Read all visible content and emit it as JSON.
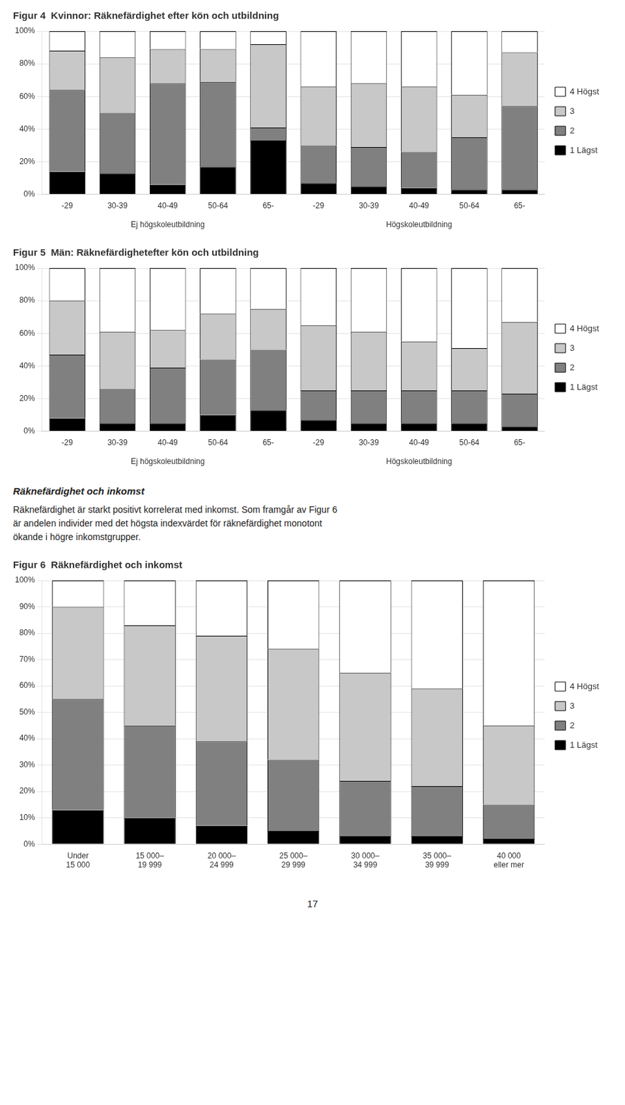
{
  "chart_data": [
    {
      "type": "bar",
      "stacked": true,
      "grid": true,
      "legend": "right",
      "title": "Figur 4  Kvinnor: Räknefärdighet efter kön och utbildning",
      "categories": [
        "-29",
        "30-39",
        "40-49",
        "50-64",
        "65-",
        "-29",
        "30-39",
        "40-49",
        "50-64",
        "65-"
      ],
      "group_labels": [
        "Ej högskoleutbildning",
        "Högskoleutbildning"
      ],
      "ylim": [
        0,
        100
      ],
      "yticks": [
        {
          "value": 0,
          "label": "0%"
        },
        {
          "value": 20,
          "label": "20%"
        },
        {
          "value": 40,
          "label": "40%"
        },
        {
          "value": 60,
          "label": "60%"
        },
        {
          "value": 80,
          "label": "80%"
        },
        {
          "value": 100,
          "label": "100%"
        }
      ],
      "series": [
        {
          "name": "1 Lägst",
          "color": "#000000",
          "values": [
            14,
            13,
            6,
            17,
            33,
            7,
            5,
            4,
            3,
            3
          ]
        },
        {
          "name": "2",
          "color": "#808080",
          "values": [
            50,
            37,
            62,
            52,
            8,
            23,
            24,
            22,
            32,
            51
          ]
        },
        {
          "name": "3",
          "color": "#c8c8c8",
          "values": [
            24,
            34,
            21,
            20,
            51,
            36,
            39,
            40,
            26,
            33
          ]
        },
        {
          "name": "4 Högst",
          "color": "#ffffff",
          "values": [
            12,
            16,
            11,
            11,
            8,
            34,
            32,
            34,
            39,
            13
          ]
        }
      ]
    },
    {
      "type": "bar",
      "stacked": true,
      "grid": true,
      "legend": "right",
      "title": "Figur 5  Män: Räknefärdighetefter kön och utbildning",
      "categories": [
        "-29",
        "30-39",
        "40-49",
        "50-64",
        "65-",
        "-29",
        "30-39",
        "40-49",
        "50-64",
        "65-"
      ],
      "group_labels": [
        "Ej högskoleutbildning",
        "Högskoleutbildning"
      ],
      "ylim": [
        0,
        100
      ],
      "yticks": [
        {
          "value": 0,
          "label": "0%"
        },
        {
          "value": 20,
          "label": "20%"
        },
        {
          "value": 40,
          "label": "40%"
        },
        {
          "value": 60,
          "label": "60%"
        },
        {
          "value": 80,
          "label": "80%"
        },
        {
          "value": 100,
          "label": "100%"
        }
      ],
      "series": [
        {
          "name": "1 Lägst",
          "color": "#000000",
          "values": [
            8,
            5,
            5,
            10,
            13,
            7,
            5,
            5,
            5,
            3
          ]
        },
        {
          "name": "2",
          "color": "#808080",
          "values": [
            39,
            21,
            34,
            34,
            37,
            18,
            20,
            20,
            20,
            20
          ]
        },
        {
          "name": "3",
          "color": "#c8c8c8",
          "values": [
            33,
            35,
            23,
            28,
            25,
            40,
            36,
            30,
            26,
            44
          ]
        },
        {
          "name": "4 Högst",
          "color": "#ffffff",
          "values": [
            20,
            39,
            38,
            28,
            25,
            35,
            39,
            45,
            49,
            33
          ]
        }
      ]
    },
    {
      "type": "bar",
      "stacked": true,
      "grid": true,
      "legend": "right",
      "title": "Figur 6  Räknefärdighet och inkomst",
      "categories": [
        "Under\n15 000",
        "15 000–\n19 999",
        "20 000–\n24 999",
        "25 000–\n29 999",
        "30 000–\n34 999",
        "35 000–\n39 999",
        "40 000\neller mer"
      ],
      "ylim": [
        0,
        100
      ],
      "yticks": [
        {
          "value": 0,
          "label": "0%"
        },
        {
          "value": 10,
          "label": "10%"
        },
        {
          "value": 20,
          "label": "20%"
        },
        {
          "value": 30,
          "label": "30%"
        },
        {
          "value": 40,
          "label": "40%"
        },
        {
          "value": 50,
          "label": "50%"
        },
        {
          "value": 60,
          "label": "60%"
        },
        {
          "value": 70,
          "label": "70%"
        },
        {
          "value": 80,
          "label": "80%"
        },
        {
          "value": 90,
          "label": "90%"
        },
        {
          "value": 100,
          "label": "100%"
        }
      ],
      "series": [
        {
          "name": "1 Lägst",
          "color": "#000000",
          "values": [
            13,
            10,
            7,
            5,
            3,
            3,
            2
          ]
        },
        {
          "name": "2",
          "color": "#808080",
          "values": [
            42,
            35,
            32,
            27,
            21,
            19,
            13
          ]
        },
        {
          "name": "3",
          "color": "#c8c8c8",
          "values": [
            35,
            38,
            40,
            42,
            41,
            37,
            30
          ]
        },
        {
          "name": "4 Högst",
          "color": "#ffffff",
          "values": [
            10,
            17,
            21,
            26,
            35,
            41,
            55
          ]
        }
      ]
    }
  ],
  "annotations": [
    "Räknefärdighet och inkomst",
    "Räknefärdighet är starkt positivt korrelerat med inkomst. Som framgår av Figur 6",
    "är andelen individer med det högsta indexvärdet för räknefärdighet monotont",
    "ökande i högre inkomstgrupper."
  ],
  "page_number": "17"
}
